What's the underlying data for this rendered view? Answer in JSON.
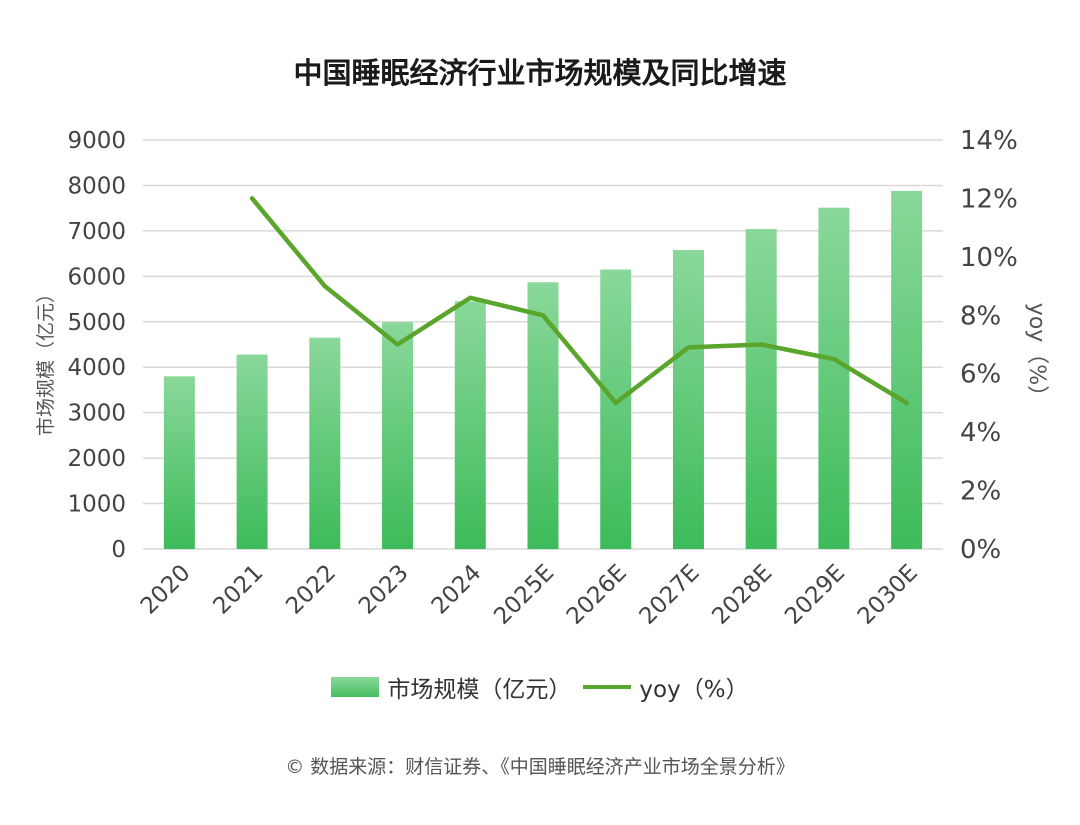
{
  "chart_data": {
    "type": "bar+line",
    "title": "中国睡眠经济行业市场规模及同比增速",
    "categories": [
      "2020",
      "2021",
      "2022",
      "2023",
      "2024",
      "2025E",
      "2026E",
      "2027E",
      "2028E",
      "2029E",
      "2030E"
    ],
    "series": [
      {
        "name": "市场规模（亿元）",
        "type": "bar",
        "axis": "left",
        "values": [
          3800,
          4280,
          4650,
          4990,
          5450,
          5870,
          6150,
          6580,
          7040,
          7510,
          7880
        ]
      },
      {
        "name": "yoy（%）",
        "type": "line",
        "axis": "right",
        "values": [
          null,
          12.0,
          9.0,
          7.0,
          8.6,
          8.0,
          5.0,
          6.9,
          7.0,
          6.5,
          5.0
        ]
      }
    ],
    "ylabel": "市场规模（亿元）",
    "ylabel_right": "yoy（%）",
    "ylim": [
      0,
      9000
    ],
    "ylim_right": [
      0,
      14
    ],
    "yticks": [
      "0",
      "1000",
      "2000",
      "3000",
      "4000",
      "5000",
      "6000",
      "7000",
      "8000",
      "9000"
    ],
    "yticks_right": [
      "0%",
      "2%",
      "4%",
      "6%",
      "8%",
      "10%",
      "12%",
      "14%"
    ],
    "grid": true,
    "legend_position": "bottom",
    "colors": {
      "bar_top": "#8ad89a",
      "bar_bottom": "#3dbb5a",
      "line": "#5aa52c",
      "grid": "#d9d9d9"
    }
  },
  "source_note": "© 数据来源：财信证券、《中国睡眠经济产业市场全景分析》"
}
